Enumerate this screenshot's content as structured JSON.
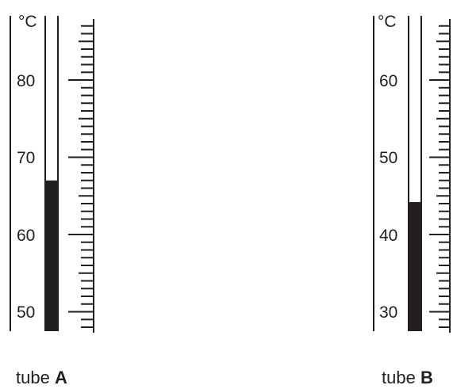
{
  "unit": "°C",
  "thermometers": [
    {
      "id": "a",
      "caption": "tube",
      "caption_letter": "A",
      "tick_labels": [
        "80",
        "70",
        "60",
        "50"
      ],
      "major_values": [
        80,
        70,
        60,
        50
      ],
      "scale_min": 48,
      "scale_max": 88,
      "reading": 67
    },
    {
      "id": "b",
      "caption": "tube",
      "caption_letter": "B",
      "tick_labels": [
        "60",
        "50",
        "40",
        "30"
      ],
      "major_values": [
        60,
        50,
        40,
        30
      ],
      "scale_min": 28,
      "scale_max": 68,
      "reading": 44.2
    }
  ],
  "colors": {
    "ink": "#231f20",
    "fill": "#231f20"
  }
}
